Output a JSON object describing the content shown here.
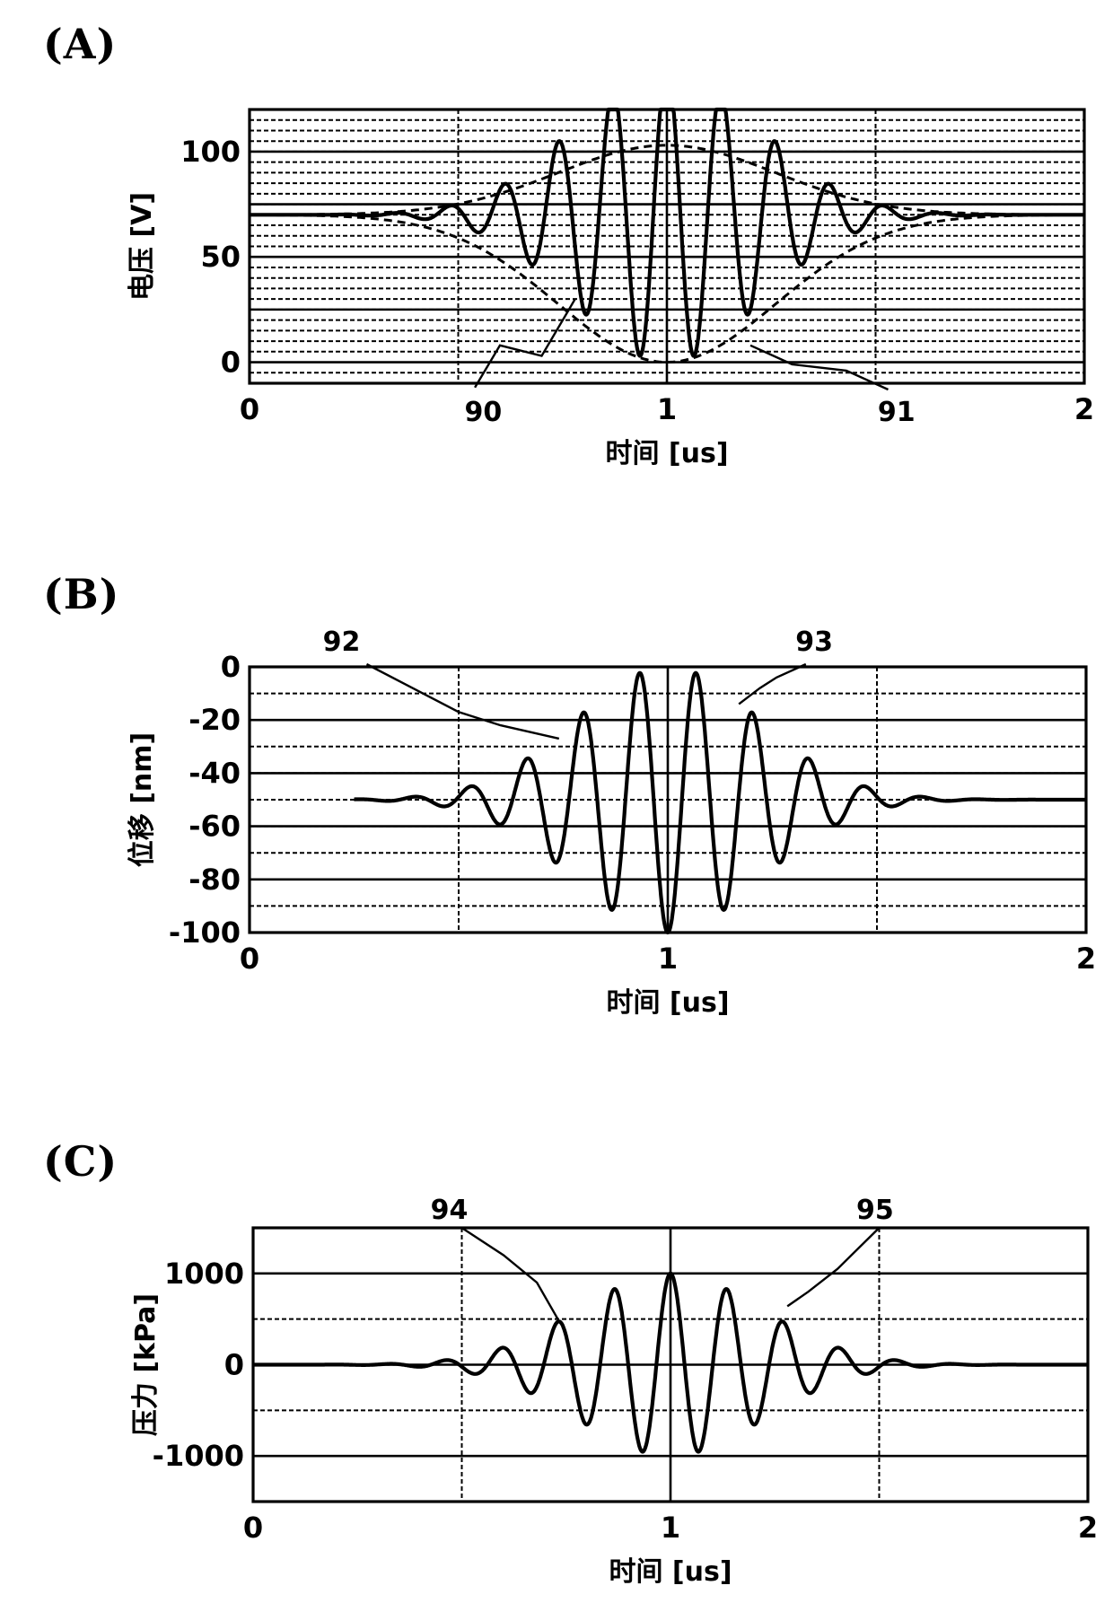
{
  "chart_data": [
    {
      "panel_label": "(A)",
      "type": "line",
      "ylabel": "电压 [V]",
      "xlabel": "时间 [us]",
      "xlim": [
        0,
        2
      ],
      "ylim": [
        -10,
        120
      ],
      "x_ticks": [
        "0",
        "1",
        "2"
      ],
      "y_ticks": [
        "0",
        "50",
        "100"
      ],
      "x_tick_values": [
        0,
        1,
        2
      ],
      "y_tick_values": [
        0,
        50,
        100
      ],
      "x_grid": [
        0.5,
        1.0,
        1.5
      ],
      "y_grid_solid": [
        0,
        25,
        50,
        75,
        100
      ],
      "y_grid_dashed_step": 5,
      "signal": {
        "kind": "burst_abs",
        "offset": 70,
        "amplitude": 70,
        "period": 0.13,
        "center": 1.0,
        "sigma": 0.22,
        "x_start": 0.0,
        "x_end": 2.0
      },
      "envelopes": [
        {
          "kind": "envelope_upper",
          "offset": 70,
          "amplitude": 33,
          "center": 1.0,
          "sigma": 0.26
        },
        {
          "kind": "envelope_lower",
          "offset": 70,
          "amplitude": 70,
          "center": 1.0,
          "sigma": 0.26
        }
      ],
      "annotations": [
        {
          "text": "90",
          "label_x": 0.56,
          "label_y": -28,
          "points": [
            [
              0.54,
              -12
            ],
            [
              0.6,
              8
            ],
            [
              0.7,
              3
            ],
            [
              0.78,
              30
            ]
          ]
        },
        {
          "text": "91",
          "label_x": 1.55,
          "label_y": -28,
          "points": [
            [
              1.53,
              -13
            ],
            [
              1.43,
              -4
            ],
            [
              1.3,
              -1
            ],
            [
              1.2,
              8
            ]
          ]
        }
      ]
    },
    {
      "panel_label": "(B)",
      "type": "line",
      "ylabel": "位移 [nm]",
      "xlabel": "时间 [us]",
      "xlim": [
        0,
        2
      ],
      "ylim": [
        -100,
        0
      ],
      "x_ticks": [
        "0",
        "1",
        "2"
      ],
      "y_ticks": [
        "0",
        "-20",
        "-40",
        "-60",
        "-80",
        "-100"
      ],
      "x_tick_values": [
        0,
        1,
        2
      ],
      "y_tick_values": [
        0,
        -20,
        -40,
        -60,
        -80,
        -100
      ],
      "x_grid": [
        0.5,
        1.0,
        1.5
      ],
      "y_grid_solid": [
        -100,
        -80,
        -60,
        -40,
        -20,
        0
      ],
      "y_grid_dashed_step": 10,
      "signal": {
        "kind": "burst_sin",
        "offset": -50,
        "amplitude": -50,
        "period": 0.135,
        "center": 1.0,
        "sigma": 0.22,
        "x_start": 0.25,
        "x_end": 2.0
      },
      "annotations": [
        {
          "text": "92",
          "label_x": 0.22,
          "label_y": 6,
          "points": [
            [
              0.28,
              1
            ],
            [
              0.5,
              -17
            ],
            [
              0.6,
              -22
            ],
            [
              0.74,
              -27
            ]
          ]
        },
        {
          "text": "93",
          "label_x": 1.35,
          "label_y": 6,
          "points": [
            [
              1.33,
              1
            ],
            [
              1.26,
              -4
            ],
            [
              1.22,
              -8
            ],
            [
              1.17,
              -14
            ]
          ]
        }
      ]
    },
    {
      "panel_label": "(C)",
      "type": "line",
      "ylabel": "压力 [kPa]",
      "xlabel": "时间 [us]",
      "xlim": [
        0,
        2
      ],
      "ylim": [
        -1500,
        1500
      ],
      "x_ticks": [
        "0",
        "1",
        "2"
      ],
      "y_ticks": [
        "1000",
        "0",
        "-1000"
      ],
      "x_tick_values": [
        0,
        1,
        2
      ],
      "y_tick_values": [
        1000,
        0,
        -1000
      ],
      "x_grid": [
        0.5,
        1.0,
        1.5
      ],
      "y_grid_solid": [
        -1000,
        0,
        1000
      ],
      "y_grid_dashed_step": 500,
      "signal": {
        "kind": "burst_cos",
        "offset": 0,
        "amplitude": 1000,
        "period": 0.135,
        "center": 1.0,
        "sigma": 0.22,
        "x_start": 0.0,
        "x_end": 2.0
      },
      "annotations": [
        {
          "text": "94",
          "label_x": 0.47,
          "label_y": 1600,
          "points": [
            [
              0.5,
              1500
            ],
            [
              0.6,
              1200
            ],
            [
              0.68,
              900
            ],
            [
              0.73,
              500
            ]
          ]
        },
        {
          "text": "95",
          "label_x": 1.49,
          "label_y": 1600,
          "points": [
            [
              1.5,
              1500
            ],
            [
              1.4,
              1050
            ],
            [
              1.33,
              800
            ],
            [
              1.28,
              640
            ]
          ]
        }
      ]
    }
  ]
}
